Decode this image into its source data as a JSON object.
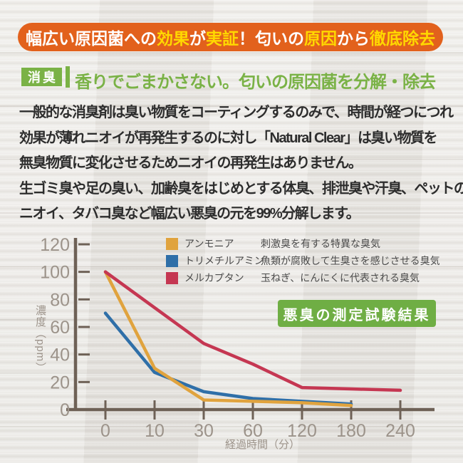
{
  "banner": {
    "segments": [
      {
        "text": "幅広い原因菌への",
        "color": "#ffffff"
      },
      {
        "text": "効果",
        "color": "#ffd800"
      },
      {
        "text": "が",
        "color": "#ffffff"
      },
      {
        "text": "実証",
        "color": "#ffd800"
      },
      {
        "text": "！匂いの",
        "color": "#ffffff"
      },
      {
        "text": "原因",
        "color": "#ffd800"
      },
      {
        "text": "から",
        "color": "#ffffff"
      },
      {
        "text": "徹底除去",
        "color": "#ffd800"
      }
    ]
  },
  "subheader": {
    "badge_label": "消臭",
    "heading": "香りでごまかさない。匂いの原因菌を分解・除去"
  },
  "body": {
    "lines": [
      "一般的な消臭剤は臭い物質をコーティングするのみで、時間が経つにつれ",
      "効果が薄れニオイが再発生するのに対し「Natural Clear」は臭い物質を",
      "無臭物質に変化させるためニオイの再発生はありません。",
      "生ゴミ臭や足の臭い、加齢臭をはじめとする体臭、排泄臭や汗臭、ペットの",
      "ニオイ、タバコ臭など幅広い悪臭の元を99%分解します。"
    ]
  },
  "chart_data": {
    "type": "line",
    "title_badge": "悪臭の測定試験結果",
    "xlabel": "経過時間（分）",
    "ylabel": "濃度（ppm）",
    "x_ticks": [
      "0",
      "10",
      "30",
      "60",
      "120",
      "180",
      "240"
    ],
    "y_ticks": [
      0,
      20,
      40,
      60,
      80,
      100,
      120
    ],
    "ylim": [
      0,
      120
    ],
    "grid": false,
    "legend_position": "top-right",
    "series": [
      {
        "name": "アンモニア",
        "desc": "刺激臭を有する特異な臭気",
        "color": "#e0a33e",
        "x": [
          0,
          10,
          30,
          60,
          120,
          180
        ],
        "values": [
          100,
          30,
          7,
          6,
          5,
          3
        ]
      },
      {
        "name": "トリメチルアミン",
        "desc": "魚類が腐敗して生臭さを感じさせる臭気",
        "color": "#2f6fa8",
        "x": [
          0,
          10,
          30,
          60,
          120,
          180
        ],
        "values": [
          70,
          27,
          13,
          8,
          6,
          4
        ]
      },
      {
        "name": "メルカプタン",
        "desc": "玉ねぎ、にんにくに代表される臭気",
        "color": "#c53752",
        "x": [
          0,
          10,
          30,
          60,
          120,
          180,
          240
        ],
        "values": [
          100,
          74,
          48,
          33,
          16,
          15,
          14
        ]
      }
    ]
  },
  "colors": {
    "banner_bg": "#e2611c",
    "banner_yellow": "#ffd800",
    "green": "#7ab246",
    "result_badge_green": "#6fae44",
    "axis": "#6e6156",
    "tick_label": "#9c938a",
    "body_text": "#2d2d2d",
    "legend_text": "#4b4b4b",
    "background": "#e9e7e3"
  }
}
